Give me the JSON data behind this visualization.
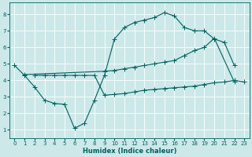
{
  "bg_color": "#cce8e8",
  "grid_color": "#b0d0d0",
  "line_color": "#006060",
  "xlabel": "Humidex (Indice chaleur)",
  "xlim": [
    -0.5,
    23.5
  ],
  "ylim": [
    0.5,
    8.7
  ],
  "xticks": [
    0,
    1,
    2,
    3,
    4,
    5,
    6,
    7,
    8,
    9,
    10,
    11,
    12,
    13,
    14,
    15,
    16,
    17,
    18,
    19,
    20,
    21,
    22,
    23
  ],
  "yticks": [
    1,
    2,
    3,
    4,
    5,
    6,
    7,
    8
  ],
  "curve1_x": [
    0,
    1,
    2,
    3,
    4,
    5,
    6,
    7,
    8,
    9,
    10,
    11,
    12,
    13,
    14,
    15,
    16,
    17,
    18,
    19,
    20,
    21,
    22
  ],
  "curve1_y": [
    4.9,
    4.3,
    3.6,
    2.8,
    2.6,
    2.55,
    1.1,
    1.4,
    2.8,
    4.3,
    6.5,
    7.2,
    7.5,
    7.65,
    7.8,
    8.1,
    7.9,
    7.2,
    7.0,
    7.0,
    6.5,
    6.3,
    4.9
  ],
  "curve2_x": [
    1,
    9,
    10,
    11,
    12,
    13,
    14,
    15,
    16,
    17,
    18,
    19,
    20,
    22
  ],
  "curve2_y": [
    4.35,
    4.55,
    4.6,
    4.7,
    4.8,
    4.9,
    5.0,
    5.1,
    5.2,
    5.5,
    5.8,
    6.0,
    6.55,
    3.9
  ],
  "curve3_x": [
    2,
    3,
    4,
    5,
    6,
    7,
    8,
    9,
    10,
    11,
    12,
    13,
    14,
    15,
    16,
    17,
    18,
    19,
    20,
    21,
    22,
    23
  ],
  "curve3_y": [
    4.3,
    4.3,
    4.3,
    4.3,
    4.3,
    4.3,
    4.3,
    3.1,
    3.15,
    3.2,
    3.3,
    3.4,
    3.45,
    3.5,
    3.55,
    3.6,
    3.65,
    3.75,
    3.85,
    3.9,
    4.0,
    3.9
  ]
}
